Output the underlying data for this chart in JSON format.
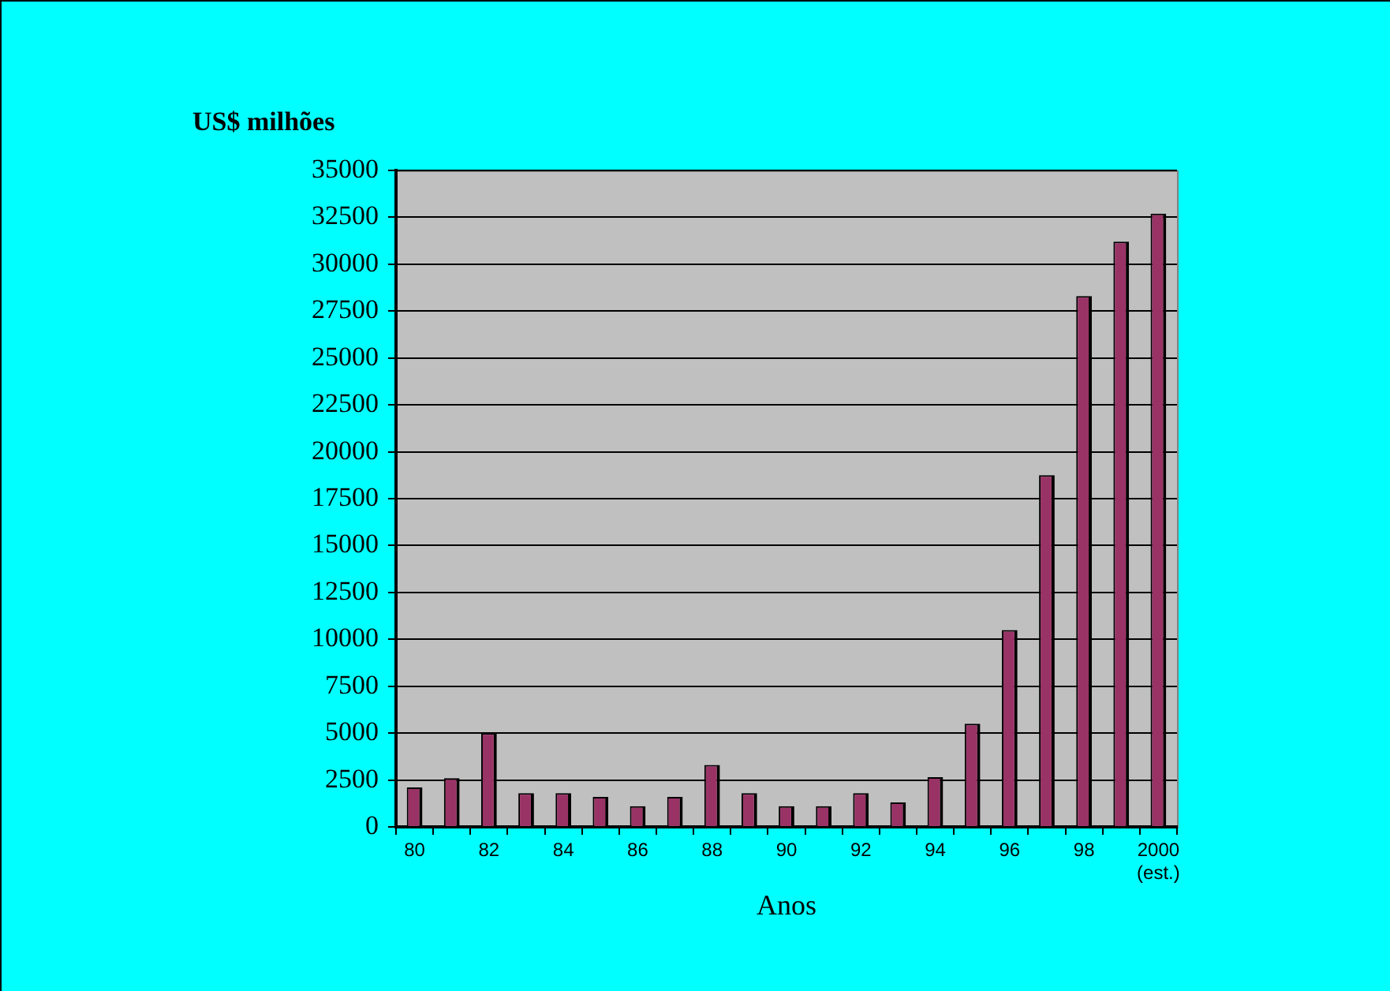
{
  "chart_data": {
    "type": "bar",
    "ylabel": "US$ milhões",
    "xlabel": "Anos",
    "categories": [
      "80",
      null,
      "82",
      null,
      "84",
      null,
      "86",
      null,
      "88",
      null,
      "90",
      null,
      "92",
      null,
      "94",
      null,
      "96",
      null,
      "98",
      null,
      "2000 (est.)"
    ],
    "values": [
      2100,
      2600,
      5000,
      1800,
      1800,
      1600,
      1100,
      1600,
      3300,
      1800,
      1100,
      1100,
      1800,
      1300,
      2650,
      5500,
      10500,
      18750,
      28300,
      31200,
      32700
    ],
    "color": "#993366",
    "ylim": [
      0,
      35000
    ],
    "yticks": [
      0,
      2500,
      5000,
      7500,
      10000,
      12500,
      15000,
      17500,
      20000,
      22500,
      25000,
      27500,
      30000,
      32500,
      35000
    ],
    "grid": "y"
  }
}
